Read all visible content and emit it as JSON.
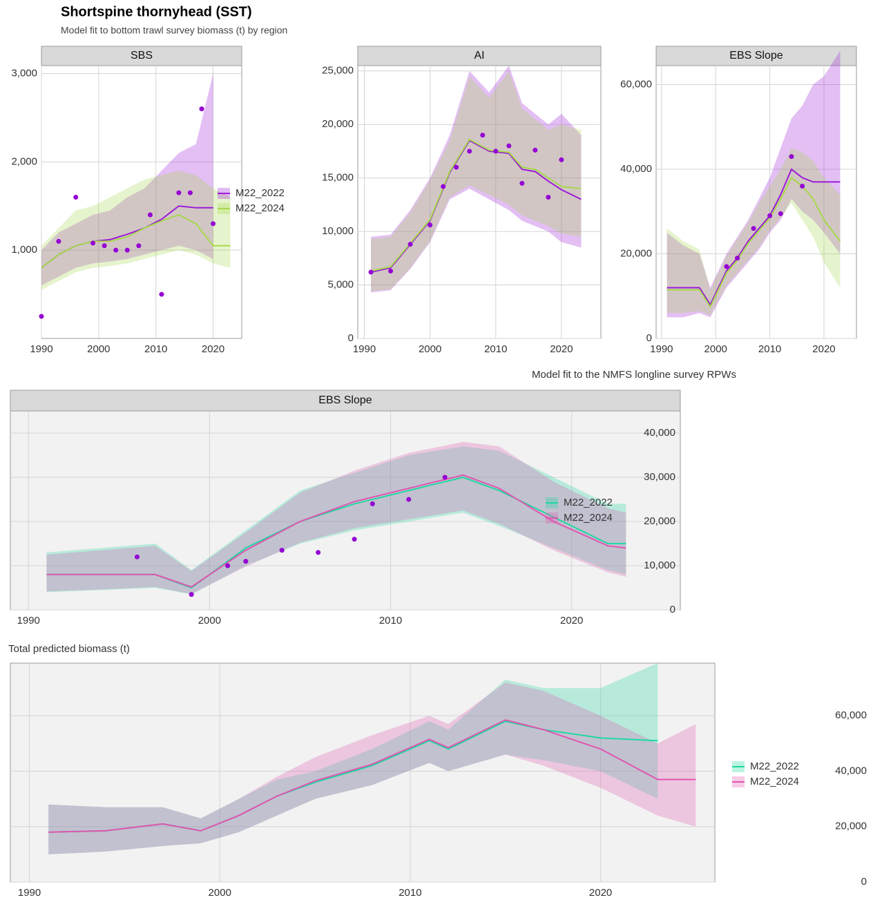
{
  "header": {
    "title": "Shortspine thornyhead (SST)",
    "subtitle": "Model fit to bottom trawl survey biomass (t) by region"
  },
  "chart_data": [
    {
      "type": "line",
      "panel": "SBS",
      "legend": "right",
      "grid": true,
      "xlim": [
        1990,
        2025
      ],
      "xticks": [
        1990,
        2000,
        2010,
        2020
      ],
      "ylim": [
        0,
        3090
      ],
      "yticks": [
        {
          "value": 1000,
          "label": "1,000"
        },
        {
          "value": 2000,
          "label": "2,000"
        },
        {
          "value": 3000,
          "label": "3,000"
        }
      ],
      "series": [
        {
          "name": "M22_2022",
          "color": "#9a1ad6",
          "x": [
            1990,
            1993,
            1996,
            1999,
            2002,
            2005,
            2008,
            2011,
            2014,
            2017,
            2020
          ],
          "values": [
            800,
            950,
            1050,
            1100,
            1120,
            1180,
            1250,
            1350,
            1500,
            1480,
            1480
          ],
          "lower": [
            600,
            700,
            800,
            850,
            870,
            900,
            950,
            1000,
            1050,
            1000,
            900
          ],
          "upper": [
            1000,
            1200,
            1300,
            1400,
            1450,
            1600,
            1700,
            1900,
            2100,
            2200,
            3000
          ]
        },
        {
          "name": "M22_2024",
          "color": "#a6d84a",
          "x": [
            1990,
            1993,
            1996,
            1999,
            2002,
            2005,
            2008,
            2011,
            2014,
            2017,
            2020,
            2023
          ],
          "values": [
            800,
            950,
            1050,
            1100,
            1100,
            1150,
            1250,
            1330,
            1400,
            1300,
            1050,
            1050
          ],
          "lower": [
            550,
            650,
            750,
            800,
            820,
            850,
            900,
            950,
            1000,
            950,
            850,
            800
          ],
          "upper": [
            1050,
            1250,
            1450,
            1500,
            1600,
            1700,
            1800,
            1850,
            1900,
            1850,
            1700,
            1600
          ]
        }
      ],
      "points": {
        "color": "#9400d3",
        "x": [
          1990,
          1993,
          1996,
          1999,
          2001,
          2003,
          2005,
          2007,
          2009,
          2011,
          2014,
          2016,
          2018,
          2020
        ],
        "values": [
          250,
          1100,
          1600,
          1080,
          1050,
          1000,
          1000,
          1050,
          1400,
          500,
          1650,
          1650,
          2600,
          1300
        ]
      }
    },
    {
      "type": "line",
      "panel": "AI",
      "grid": true,
      "xlim": [
        1989,
        2026
      ],
      "xticks": [
        1990,
        2000,
        2010,
        2020
      ],
      "ylim": [
        0,
        25500
      ],
      "yticks": [
        0,
        {
          "value": 5000,
          "label": "5,000"
        },
        {
          "value": 10000,
          "label": "10,000"
        },
        {
          "value": 15000,
          "label": "15,000"
        },
        {
          "value": 20000,
          "label": "20,000"
        },
        {
          "value": 25000,
          "label": "25,000"
        }
      ],
      "series": [
        {
          "color": "#9a1ad6",
          "x": [
            1991,
            1994,
            1997,
            2000,
            2003,
            2006,
            2009,
            2012,
            2014,
            2016,
            2018,
            2020,
            2023
          ],
          "values": [
            6200,
            6600,
            8800,
            11000,
            15500,
            18500,
            17500,
            17300,
            15800,
            15600,
            14700,
            13900,
            13000
          ],
          "lower": [
            4300,
            4500,
            6500,
            9000,
            13000,
            14000,
            13000,
            12000,
            11000,
            10500,
            10000,
            9000,
            8500
          ],
          "upper": [
            9500,
            9700,
            12000,
            15000,
            19000,
            25000,
            23000,
            25500,
            22000,
            21000,
            20000,
            21000,
            19000
          ]
        },
        {
          "color": "#a6d84a",
          "x": [
            1991,
            1994,
            1997,
            2000,
            2003,
            2006,
            2009,
            2012,
            2014,
            2016,
            2018,
            2020,
            2023
          ],
          "values": [
            6300,
            6700,
            8900,
            11100,
            15600,
            18600,
            17600,
            17400,
            16000,
            15800,
            15000,
            14200,
            14000
          ],
          "lower": [
            4400,
            4600,
            6600,
            9100,
            13200,
            14300,
            13400,
            12500,
            11500,
            11000,
            10500,
            9800,
            9500
          ],
          "upper": [
            9300,
            9500,
            11800,
            14800,
            18500,
            24500,
            22500,
            25000,
            21500,
            20500,
            19500,
            20000,
            19500
          ]
        }
      ],
      "points": {
        "color": "#9400d3",
        "x": [
          1991,
          1994,
          1997,
          2000,
          2002,
          2004,
          2006,
          2008,
          2010,
          2012,
          2014,
          2016,
          2018,
          2020
        ],
        "values": [
          6200,
          6300,
          8800,
          10600,
          14200,
          16000,
          17500,
          19000,
          17500,
          18000,
          14500,
          17600,
          13200,
          16700
        ]
      }
    },
    {
      "type": "line",
      "panel": "EBS Slope",
      "grid": true,
      "xlim": [
        1989,
        2026
      ],
      "xticks": [
        1990,
        2000,
        2010,
        2020
      ],
      "ylim": [
        0,
        64500
      ],
      "yticks": [
        0,
        {
          "value": 20000,
          "label": "20,000"
        },
        {
          "value": 40000,
          "label": "40,000"
        },
        {
          "value": 60000,
          "label": "60,000"
        }
      ],
      "series": [
        {
          "color": "#9a1ad6",
          "x": [
            1991,
            1994,
            1997,
            1999,
            2002,
            2004,
            2006,
            2008,
            2010,
            2012,
            2014,
            2016,
            2018,
            2020,
            2023
          ],
          "values": [
            12000,
            12000,
            12000,
            8000,
            16000,
            19000,
            23000,
            26000,
            29000,
            34000,
            40000,
            38000,
            37000,
            37000,
            37000
          ],
          "lower": [
            5000,
            5000,
            6000,
            5000,
            12000,
            15000,
            18000,
            21000,
            25000,
            28000,
            33000,
            30000,
            28000,
            25000,
            20000
          ],
          "upper": [
            25000,
            22000,
            20000,
            12000,
            20000,
            24000,
            28000,
            33000,
            38000,
            45000,
            52000,
            55000,
            60000,
            62000,
            68000
          ]
        },
        {
          "color": "#a6d84a",
          "x": [
            1991,
            1994,
            1997,
            1999,
            2002,
            2004,
            2006,
            2008,
            2010,
            2012,
            2014,
            2016,
            2018,
            2020,
            2023
          ],
          "values": [
            11500,
            11500,
            11500,
            7500,
            15500,
            18500,
            22500,
            25500,
            28500,
            33000,
            38000,
            36000,
            33000,
            28000,
            23000
          ],
          "lower": [
            6000,
            6000,
            6500,
            5500,
            12500,
            15500,
            18500,
            21500,
            25500,
            28500,
            32000,
            28000,
            24000,
            18000,
            12000
          ],
          "upper": [
            26000,
            23000,
            21000,
            11500,
            19500,
            23500,
            27500,
            32000,
            36000,
            40000,
            45000,
            44000,
            42000,
            38000,
            34000
          ]
        }
      ],
      "points": {
        "color": "#9400d3",
        "x": [
          2002,
          2004,
          2007,
          2010,
          2012,
          2014,
          2016
        ],
        "values": [
          17000,
          19000,
          26000,
          29000,
          29500,
          43000,
          36000
        ]
      }
    },
    {
      "type": "line",
      "title": "Model fit to the NMFS longline survey RPWs",
      "panel": "EBS Slope",
      "legend": "middle",
      "grid": true,
      "xlim": [
        1989,
        2026
      ],
      "xticks": [
        1990,
        2000,
        2010,
        2020
      ],
      "ylim": [
        0,
        45000
      ],
      "yticks": [
        0,
        {
          "value": 10000,
          "label": "10,000"
        },
        {
          "value": 20000,
          "label": "20,000"
        },
        {
          "value": 30000,
          "label": "30,000"
        },
        {
          "value": 40000,
          "label": "40,000"
        }
      ],
      "series": [
        {
          "name": "M22_2022",
          "color": "#1fd8a0",
          "x": [
            1991,
            1994,
            1997,
            1999,
            2002,
            2005,
            2008,
            2011,
            2014,
            2016,
            2019,
            2022,
            2023
          ],
          "values": [
            8000,
            8000,
            8000,
            5000,
            14000,
            20000,
            24000,
            27000,
            30000,
            27000,
            21000,
            15000,
            15000
          ],
          "lower": [
            4000,
            4500,
            5000,
            3500,
            10000,
            15000,
            18000,
            20000,
            22000,
            19000,
            14000,
            9000,
            8000
          ],
          "upper": [
            13000,
            14000,
            15000,
            9000,
            18000,
            27000,
            31000,
            35000,
            37000,
            36000,
            30000,
            24000,
            24000
          ]
        },
        {
          "name": "M22_2024",
          "color": "#e055b0",
          "x": [
            1991,
            1994,
            1997,
            1999,
            2002,
            2005,
            2008,
            2011,
            2014,
            2016,
            2019,
            2022,
            2023
          ],
          "values": [
            8000,
            8000,
            8000,
            5200,
            13500,
            20000,
            24500,
            27500,
            30500,
            27500,
            20000,
            14500,
            14000
          ],
          "lower": [
            4200,
            4600,
            5200,
            3600,
            9800,
            15200,
            18500,
            20500,
            22500,
            19500,
            13500,
            8500,
            7500
          ],
          "upper": [
            12500,
            13500,
            14500,
            8800,
            17500,
            26500,
            31500,
            35500,
            38000,
            37000,
            29000,
            23000,
            22000
          ]
        }
      ],
      "points": {
        "color": "#9400d3",
        "x": [
          1996,
          1999,
          2001,
          2002,
          2004,
          2006,
          2008,
          2009,
          2011,
          2013
        ],
        "values": [
          12000,
          3500,
          10000,
          11000,
          13500,
          13000,
          16000,
          24000,
          25000,
          30000
        ]
      }
    },
    {
      "type": "line",
      "title": "Total predicted biomass (t)",
      "legend": "right",
      "grid": true,
      "xlim": [
        1989,
        2026
      ],
      "xticks": [
        1990,
        2000,
        2010,
        2020
      ],
      "ylim": [
        0,
        79000
      ],
      "yticks": [
        0,
        {
          "value": 20000,
          "label": "20,000"
        },
        {
          "value": 40000,
          "label": "40,000"
        },
        {
          "value": 60000,
          "label": "60,000"
        }
      ],
      "series": [
        {
          "name": "M22_2022",
          "color": "#1fd8a0",
          "x": [
            1991,
            1994,
            1997,
            1999,
            2001,
            2003,
            2005,
            2008,
            2011,
            2012,
            2015,
            2017,
            2020,
            2023
          ],
          "values": [
            18000,
            18500,
            21000,
            18500,
            24000,
            31000,
            36000,
            42000,
            51000,
            48000,
            58000,
            55000,
            52000,
            51000
          ],
          "lower": [
            10000,
            11000,
            13000,
            14000,
            18000,
            24000,
            30000,
            35000,
            43000,
            40000,
            46000,
            44000,
            40000,
            30000
          ],
          "upper": [
            28000,
            27000,
            27000,
            23000,
            30000,
            37000,
            40000,
            48000,
            58000,
            55000,
            73000,
            70000,
            70000,
            79000
          ]
        },
        {
          "name": "M22_2024",
          "color": "#e055b0",
          "x": [
            1991,
            1994,
            1997,
            1999,
            2001,
            2003,
            2005,
            2008,
            2011,
            2012,
            2015,
            2017,
            2020,
            2023,
            2025
          ],
          "values": [
            18000,
            18500,
            21000,
            18500,
            24000,
            31000,
            36500,
            42500,
            51500,
            48500,
            58500,
            55000,
            48000,
            37000,
            37000
          ],
          "lower": [
            10000,
            11000,
            13000,
            14000,
            18000,
            24000,
            30000,
            35000,
            43000,
            40000,
            46000,
            42000,
            34000,
            24000,
            20000
          ],
          "upper": [
            28000,
            27000,
            27000,
            23000,
            30000,
            38000,
            45000,
            53000,
            60000,
            57000,
            72000,
            69000,
            60000,
            50000,
            57000
          ]
        }
      ]
    }
  ]
}
